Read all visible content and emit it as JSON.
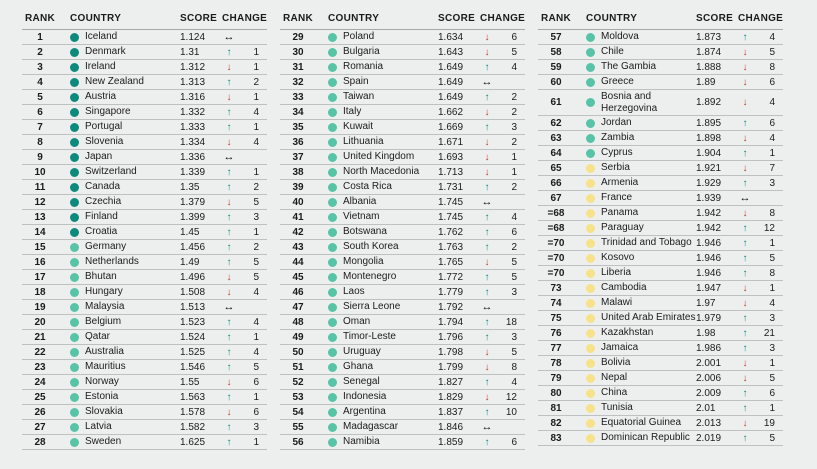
{
  "colors": {
    "page_background": "#edefee",
    "divider": "#bdc2c0",
    "text": "#1b1b1b",
    "tier_very_high": "#0d8a7e",
    "tier_high": "#57c3a7",
    "tier_medium": "#f8e289",
    "arrow_up": "#0d8a7e",
    "arrow_down": "#c13a31",
    "arrow_same": "#111111"
  },
  "icons": {
    "up_arrow": "↑",
    "down_arrow": "↓",
    "same_arrow": "↔",
    "tier_dot": "●"
  },
  "table": {
    "headers": {
      "rank": "RANK",
      "country": "COUNTRY",
      "score": "SCORE",
      "change": "CHANGE"
    },
    "columns": [
      {
        "rows": [
          {
            "rank": "1",
            "country": "Iceland",
            "score": "1.124",
            "change_dir": "same",
            "change_value": "",
            "tier": "very-high"
          },
          {
            "rank": "2",
            "country": "Denmark",
            "score": "1.31",
            "change_dir": "up",
            "change_value": "1",
            "tier": "very-high"
          },
          {
            "rank": "3",
            "country": "Ireland",
            "score": "1.312",
            "change_dir": "down",
            "change_value": "1",
            "tier": "very-high"
          },
          {
            "rank": "4",
            "country": "New Zealand",
            "score": "1.313",
            "change_dir": "up",
            "change_value": "2",
            "tier": "very-high"
          },
          {
            "rank": "5",
            "country": "Austria",
            "score": "1.316",
            "change_dir": "down",
            "change_value": "1",
            "tier": "very-high"
          },
          {
            "rank": "6",
            "country": "Singapore",
            "score": "1.332",
            "change_dir": "up",
            "change_value": "4",
            "tier": "very-high"
          },
          {
            "rank": "7",
            "country": "Portugal",
            "score": "1.333",
            "change_dir": "up",
            "change_value": "1",
            "tier": "very-high"
          },
          {
            "rank": "8",
            "country": "Slovenia",
            "score": "1.334",
            "change_dir": "down",
            "change_value": "4",
            "tier": "very-high"
          },
          {
            "rank": "9",
            "country": "Japan",
            "score": "1.336",
            "change_dir": "same",
            "change_value": "",
            "tier": "very-high"
          },
          {
            "rank": "10",
            "country": "Switzerland",
            "score": "1.339",
            "change_dir": "up",
            "change_value": "1",
            "tier": "very-high"
          },
          {
            "rank": "11",
            "country": "Canada",
            "score": "1.35",
            "change_dir": "up",
            "change_value": "2",
            "tier": "very-high"
          },
          {
            "rank": "12",
            "country": "Czechia",
            "score": "1.379",
            "change_dir": "down",
            "change_value": "5",
            "tier": "very-high"
          },
          {
            "rank": "13",
            "country": "Finland",
            "score": "1.399",
            "change_dir": "up",
            "change_value": "3",
            "tier": "very-high"
          },
          {
            "rank": "14",
            "country": "Croatia",
            "score": "1.45",
            "change_dir": "up",
            "change_value": "1",
            "tier": "very-high"
          },
          {
            "rank": "15",
            "country": "Germany",
            "score": "1.456",
            "change_dir": "up",
            "change_value": "2",
            "tier": "high"
          },
          {
            "rank": "16",
            "country": "Netherlands",
            "score": "1.49",
            "change_dir": "up",
            "change_value": "5",
            "tier": "high"
          },
          {
            "rank": "17",
            "country": "Bhutan",
            "score": "1.496",
            "change_dir": "down",
            "change_value": "5",
            "tier": "high"
          },
          {
            "rank": "18",
            "country": "Hungary",
            "score": "1.508",
            "change_dir": "down",
            "change_value": "4",
            "tier": "high"
          },
          {
            "rank": "19",
            "country": "Malaysia",
            "score": "1.513",
            "change_dir": "same",
            "change_value": "",
            "tier": "high"
          },
          {
            "rank": "20",
            "country": "Belgium",
            "score": "1.523",
            "change_dir": "up",
            "change_value": "4",
            "tier": "high"
          },
          {
            "rank": "21",
            "country": "Qatar",
            "score": "1.524",
            "change_dir": "up",
            "change_value": "1",
            "tier": "high"
          },
          {
            "rank": "22",
            "country": "Australia",
            "score": "1.525",
            "change_dir": "up",
            "change_value": "4",
            "tier": "high"
          },
          {
            "rank": "23",
            "country": "Mauritius",
            "score": "1.546",
            "change_dir": "up",
            "change_value": "5",
            "tier": "high"
          },
          {
            "rank": "24",
            "country": "Norway",
            "score": "1.55",
            "change_dir": "down",
            "change_value": "6",
            "tier": "high"
          },
          {
            "rank": "25",
            "country": "Estonia",
            "score": "1.563",
            "change_dir": "up",
            "change_value": "1",
            "tier": "high"
          },
          {
            "rank": "26",
            "country": "Slovakia",
            "score": "1.578",
            "change_dir": "down",
            "change_value": "6",
            "tier": "high"
          },
          {
            "rank": "27",
            "country": "Latvia",
            "score": "1.582",
            "change_dir": "up",
            "change_value": "3",
            "tier": "high"
          },
          {
            "rank": "28",
            "country": "Sweden",
            "score": "1.625",
            "change_dir": "up",
            "change_value": "1",
            "tier": "high"
          }
        ]
      },
      {
        "rows": [
          {
            "rank": "29",
            "country": "Poland",
            "score": "1.634",
            "change_dir": "down",
            "change_value": "6",
            "tier": "high"
          },
          {
            "rank": "30",
            "country": "Bulgaria",
            "score": "1.643",
            "change_dir": "down",
            "change_value": "5",
            "tier": "high"
          },
          {
            "rank": "31",
            "country": "Romania",
            "score": "1.649",
            "change_dir": "up",
            "change_value": "4",
            "tier": "high"
          },
          {
            "rank": "32",
            "country": "Spain",
            "score": "1.649",
            "change_dir": "same",
            "change_value": "",
            "tier": "high"
          },
          {
            "rank": "33",
            "country": "Taiwan",
            "score": "1.649",
            "change_dir": "up",
            "change_value": "2",
            "tier": "high"
          },
          {
            "rank": "34",
            "country": "Italy",
            "score": "1.662",
            "change_dir": "down",
            "change_value": "2",
            "tier": "high"
          },
          {
            "rank": "35",
            "country": "Kuwait",
            "score": "1.669",
            "change_dir": "up",
            "change_value": "3",
            "tier": "high"
          },
          {
            "rank": "36",
            "country": "Lithuania",
            "score": "1.671",
            "change_dir": "down",
            "change_value": "2",
            "tier": "high"
          },
          {
            "rank": "37",
            "country": "United Kingdom",
            "score": "1.693",
            "change_dir": "down",
            "change_value": "1",
            "tier": "high"
          },
          {
            "rank": "38",
            "country": "North Macedonia",
            "score": "1.713",
            "change_dir": "down",
            "change_value": "1",
            "tier": "high"
          },
          {
            "rank": "39",
            "country": "Costa Rica",
            "score": "1.731",
            "change_dir": "up",
            "change_value": "2",
            "tier": "high"
          },
          {
            "rank": "40",
            "country": "Albania",
            "score": "1.745",
            "change_dir": "same",
            "change_value": "",
            "tier": "high"
          },
          {
            "rank": "41",
            "country": "Vietnam",
            "score": "1.745",
            "change_dir": "up",
            "change_value": "4",
            "tier": "high"
          },
          {
            "rank": "42",
            "country": "Botswana",
            "score": "1.762",
            "change_dir": "up",
            "change_value": "6",
            "tier": "high"
          },
          {
            "rank": "43",
            "country": "South Korea",
            "score": "1.763",
            "change_dir": "up",
            "change_value": "2",
            "tier": "high"
          },
          {
            "rank": "44",
            "country": "Mongolia",
            "score": "1.765",
            "change_dir": "down",
            "change_value": "5",
            "tier": "high"
          },
          {
            "rank": "45",
            "country": "Montenegro",
            "score": "1.772",
            "change_dir": "up",
            "change_value": "5",
            "tier": "high"
          },
          {
            "rank": "46",
            "country": "Laos",
            "score": "1.779",
            "change_dir": "up",
            "change_value": "3",
            "tier": "high"
          },
          {
            "rank": "47",
            "country": "Sierra Leone",
            "score": "1.792",
            "change_dir": "same",
            "change_value": "",
            "tier": "high"
          },
          {
            "rank": "48",
            "country": "Oman",
            "score": "1.794",
            "change_dir": "up",
            "change_value": "18",
            "tier": "high"
          },
          {
            "rank": "49",
            "country": "Timor-Leste",
            "score": "1.796",
            "change_dir": "up",
            "change_value": "3",
            "tier": "high"
          },
          {
            "rank": "50",
            "country": "Uruguay",
            "score": "1.798",
            "change_dir": "down",
            "change_value": "5",
            "tier": "high"
          },
          {
            "rank": "51",
            "country": "Ghana",
            "score": "1.799",
            "change_dir": "down",
            "change_value": "8",
            "tier": "high"
          },
          {
            "rank": "52",
            "country": "Senegal",
            "score": "1.827",
            "change_dir": "up",
            "change_value": "4",
            "tier": "high"
          },
          {
            "rank": "53",
            "country": "Indonesia",
            "score": "1.829",
            "change_dir": "down",
            "change_value": "12",
            "tier": "high"
          },
          {
            "rank": "54",
            "country": "Argentina",
            "score": "1.837",
            "change_dir": "up",
            "change_value": "10",
            "tier": "high"
          },
          {
            "rank": "55",
            "country": "Madagascar",
            "score": "1.846",
            "change_dir": "same",
            "change_value": "",
            "tier": "high"
          },
          {
            "rank": "56",
            "country": "Namibia",
            "score": "1.859",
            "change_dir": "up",
            "change_value": "6",
            "tier": "high"
          }
        ]
      },
      {
        "rows": [
          {
            "rank": "57",
            "country": "Moldova",
            "score": "1.873",
            "change_dir": "up",
            "change_value": "4",
            "tier": "high"
          },
          {
            "rank": "58",
            "country": "Chile",
            "score": "1.874",
            "change_dir": "down",
            "change_value": "5",
            "tier": "high"
          },
          {
            "rank": "59",
            "country": "The Gambia",
            "score": "1.888",
            "change_dir": "down",
            "change_value": "8",
            "tier": "high"
          },
          {
            "rank": "60",
            "country": "Greece",
            "score": "1.89",
            "change_dir": "down",
            "change_value": "6",
            "tier": "high"
          },
          {
            "rank": "61",
            "country": "Bosnia and Herzegovina",
            "score": "1.892",
            "change_dir": "down",
            "change_value": "4",
            "tier": "high"
          },
          {
            "rank": "62",
            "country": "Jordan",
            "score": "1.895",
            "change_dir": "up",
            "change_value": "6",
            "tier": "high"
          },
          {
            "rank": "63",
            "country": "Zambia",
            "score": "1.898",
            "change_dir": "down",
            "change_value": "4",
            "tier": "high"
          },
          {
            "rank": "64",
            "country": "Cyprus",
            "score": "1.904",
            "change_dir": "up",
            "change_value": "1",
            "tier": "high"
          },
          {
            "rank": "65",
            "country": "Serbia",
            "score": "1.921",
            "change_dir": "down",
            "change_value": "7",
            "tier": "medium"
          },
          {
            "rank": "66",
            "country": "Armenia",
            "score": "1.929",
            "change_dir": "up",
            "change_value": "3",
            "tier": "medium"
          },
          {
            "rank": "67",
            "country": "France",
            "score": "1.939",
            "change_dir": "same",
            "change_value": "",
            "tier": "medium"
          },
          {
            "rank": "=68",
            "country": "Panama",
            "score": "1.942",
            "change_dir": "down",
            "change_value": "8",
            "tier": "medium"
          },
          {
            "rank": "=68",
            "country": "Paraguay",
            "score": "1.942",
            "change_dir": "up",
            "change_value": "12",
            "tier": "medium"
          },
          {
            "rank": "=70",
            "country": "Trinidad and Tobago",
            "score": "1.946",
            "change_dir": "up",
            "change_value": "1",
            "tier": "medium"
          },
          {
            "rank": "=70",
            "country": "Kosovo",
            "score": "1.946",
            "change_dir": "up",
            "change_value": "5",
            "tier": "medium"
          },
          {
            "rank": "=70",
            "country": "Liberia",
            "score": "1.946",
            "change_dir": "up",
            "change_value": "8",
            "tier": "medium"
          },
          {
            "rank": "73",
            "country": "Cambodia",
            "score": "1.947",
            "change_dir": "down",
            "change_value": "1",
            "tier": "medium"
          },
          {
            "rank": "74",
            "country": "Malawi",
            "score": "1.97",
            "change_dir": "down",
            "change_value": "4",
            "tier": "medium"
          },
          {
            "rank": "75",
            "country": "United Arab Emirates",
            "score": "1.979",
            "change_dir": "up",
            "change_value": "3",
            "tier": "medium"
          },
          {
            "rank": "76",
            "country": "Kazakhstan",
            "score": "1.98",
            "change_dir": "up",
            "change_value": "21",
            "tier": "medium"
          },
          {
            "rank": "77",
            "country": "Jamaica",
            "score": "1.986",
            "change_dir": "up",
            "change_value": "3",
            "tier": "medium"
          },
          {
            "rank": "78",
            "country": "Bolivia",
            "score": "2.001",
            "change_dir": "down",
            "change_value": "1",
            "tier": "medium"
          },
          {
            "rank": "79",
            "country": "Nepal",
            "score": "2.006",
            "change_dir": "down",
            "change_value": "5",
            "tier": "medium"
          },
          {
            "rank": "80",
            "country": "China",
            "score": "2.009",
            "change_dir": "up",
            "change_value": "6",
            "tier": "medium"
          },
          {
            "rank": "81",
            "country": "Tunisia",
            "score": "2.01",
            "change_dir": "up",
            "change_value": "1",
            "tier": "medium"
          },
          {
            "rank": "82",
            "country": "Equatorial Guinea",
            "score": "2.013",
            "change_dir": "down",
            "change_value": "19",
            "tier": "medium"
          },
          {
            "rank": "83",
            "country": "Dominican Republic",
            "score": "2.019",
            "change_dir": "up",
            "change_value": "5",
            "tier": "medium"
          }
        ]
      }
    ]
  }
}
